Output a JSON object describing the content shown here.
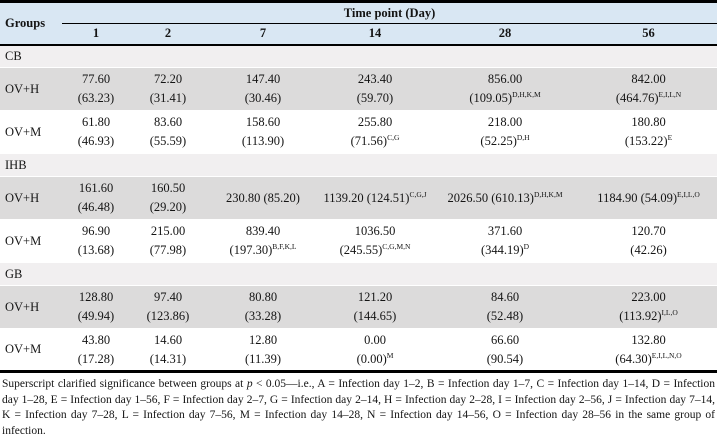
{
  "table": {
    "corner_header": "Groups",
    "spanner_header": "Time point (Day)",
    "day_columns": [
      "1",
      "2",
      "7",
      "14",
      "28",
      "56"
    ],
    "sections": [
      {
        "name": "CB",
        "rows": [
          {
            "label": "OV+H",
            "cells": [
              {
                "mean": "77.60",
                "sd": "(63.23)",
                "sup": ""
              },
              {
                "mean": "72.20",
                "sd": "(31.41)",
                "sup": ""
              },
              {
                "mean": "147.40",
                "sd": "(30.46)",
                "sup": ""
              },
              {
                "mean": "243.40",
                "sd": "(59.70)",
                "sup": ""
              },
              {
                "mean": "856.00",
                "sd": "(109.05)",
                "sup": "D,H,K,M"
              },
              {
                "mean": "842.00",
                "sd": "(464.76)",
                "sup": "E,I,L,N"
              }
            ]
          },
          {
            "label": "OV+M",
            "cells": [
              {
                "mean": "61.80",
                "sd": "(46.93)",
                "sup": ""
              },
              {
                "mean": "83.60",
                "sd": "(55.59)",
                "sup": ""
              },
              {
                "mean": "158.60",
                "sd": "(113.90)",
                "sup": ""
              },
              {
                "mean": "255.80",
                "sd": "(71.56)",
                "sup": "C,G"
              },
              {
                "mean": "218.00",
                "sd": "(52.25)",
                "sup": "D,H"
              },
              {
                "mean": "180.80",
                "sd": "(153.22)",
                "sup": "E"
              }
            ]
          }
        ]
      },
      {
        "name": "IHB",
        "rows": [
          {
            "label": "OV+H",
            "cells": [
              {
                "mean": "161.60",
                "sd": "(46.48)",
                "sup": ""
              },
              {
                "mean": "160.50",
                "sd": "(29.20)",
                "sup": ""
              },
              {
                "mean": "230.80",
                "sd": "(85.20)",
                "sup": "",
                "inline": true
              },
              {
                "mean": "1139.20",
                "sd": "(124.51)",
                "sup": "C,G,J",
                "inline": true
              },
              {
                "mean": "2026.50",
                "sd": "(610.13)",
                "sup": "D,H,K,M",
                "inline": true
              },
              {
                "mean": "1184.90",
                "sd": "(54.09)",
                "sup": "E,I,L,O",
                "inline": true
              }
            ]
          },
          {
            "label": "OV+M",
            "cells": [
              {
                "mean": "96.90",
                "sd": "(13.68)",
                "sup": ""
              },
              {
                "mean": "215.00",
                "sd": "(77.98)",
                "sup": ""
              },
              {
                "mean": "839.40",
                "sd": "(197.30)",
                "sup": "B,F,K,L"
              },
              {
                "mean": "1036.50",
                "sd": "(245.55)",
                "sup": "C,G,M,N"
              },
              {
                "mean": "371.60",
                "sd": "(344.19)",
                "sup": "D"
              },
              {
                "mean": "120.70",
                "sd": "(42.26)",
                "sup": ""
              }
            ]
          }
        ]
      },
      {
        "name": "GB",
        "rows": [
          {
            "label": "OV+H",
            "cells": [
              {
                "mean": "128.80",
                "sd": "(49.94)",
                "sup": ""
              },
              {
                "mean": "97.40",
                "sd": "(123.86)",
                "sup": ""
              },
              {
                "mean": "80.80",
                "sd": "(33.28)",
                "sup": ""
              },
              {
                "mean": "121.20",
                "sd": "(144.65)",
                "sup": ""
              },
              {
                "mean": "84.60",
                "sd": "(52.48)",
                "sup": ""
              },
              {
                "mean": "223.00",
                "sd": "(113.92)",
                "sup": "I,L,O"
              }
            ]
          },
          {
            "label": "OV+M",
            "cells": [
              {
                "mean": "43.80",
                "sd": "(17.28)",
                "sup": ""
              },
              {
                "mean": "14.60",
                "sd": "(14.31)",
                "sup": ""
              },
              {
                "mean": "12.80",
                "sd": "(11.39)",
                "sup": ""
              },
              {
                "mean": "0.00",
                "sd": "(0.00)",
                "sup": "M"
              },
              {
                "mean": "66.60",
                "sd": "(90.54)",
                "sup": ""
              },
              {
                "mean": "132.80",
                "sd": "(64.30)",
                "sup": "E,I,L,N,O"
              }
            ]
          }
        ]
      }
    ]
  },
  "footnote": {
    "before_p": "Superscript clarified significance between groups at ",
    "p_symbol": "p",
    "after_p": " < 0.05—i.e., A = Infection day 1–2, B = Infection day 1–7, C = Infection day 1–14, D = Infection day 1–28, E = Infection day 1–56, F = Infection day 2–7, G = Infection day 2–14, H = Infection day 2–28, I = Infection day 2–56, J = Infection day 7–14, K = Infection day 7–28, L = Infection day 7–56, M = Infection day 14–28, N = Infection day 14–56, O = Infection day 28–56 in the same group of infection."
  },
  "colors": {
    "header_bg": "#d9e7f3",
    "section_bg": "#f1eff0",
    "shaded_row_bg": "#dcdbdb",
    "plain_row_bg": "#ffffff",
    "rule_color": "#000000"
  }
}
